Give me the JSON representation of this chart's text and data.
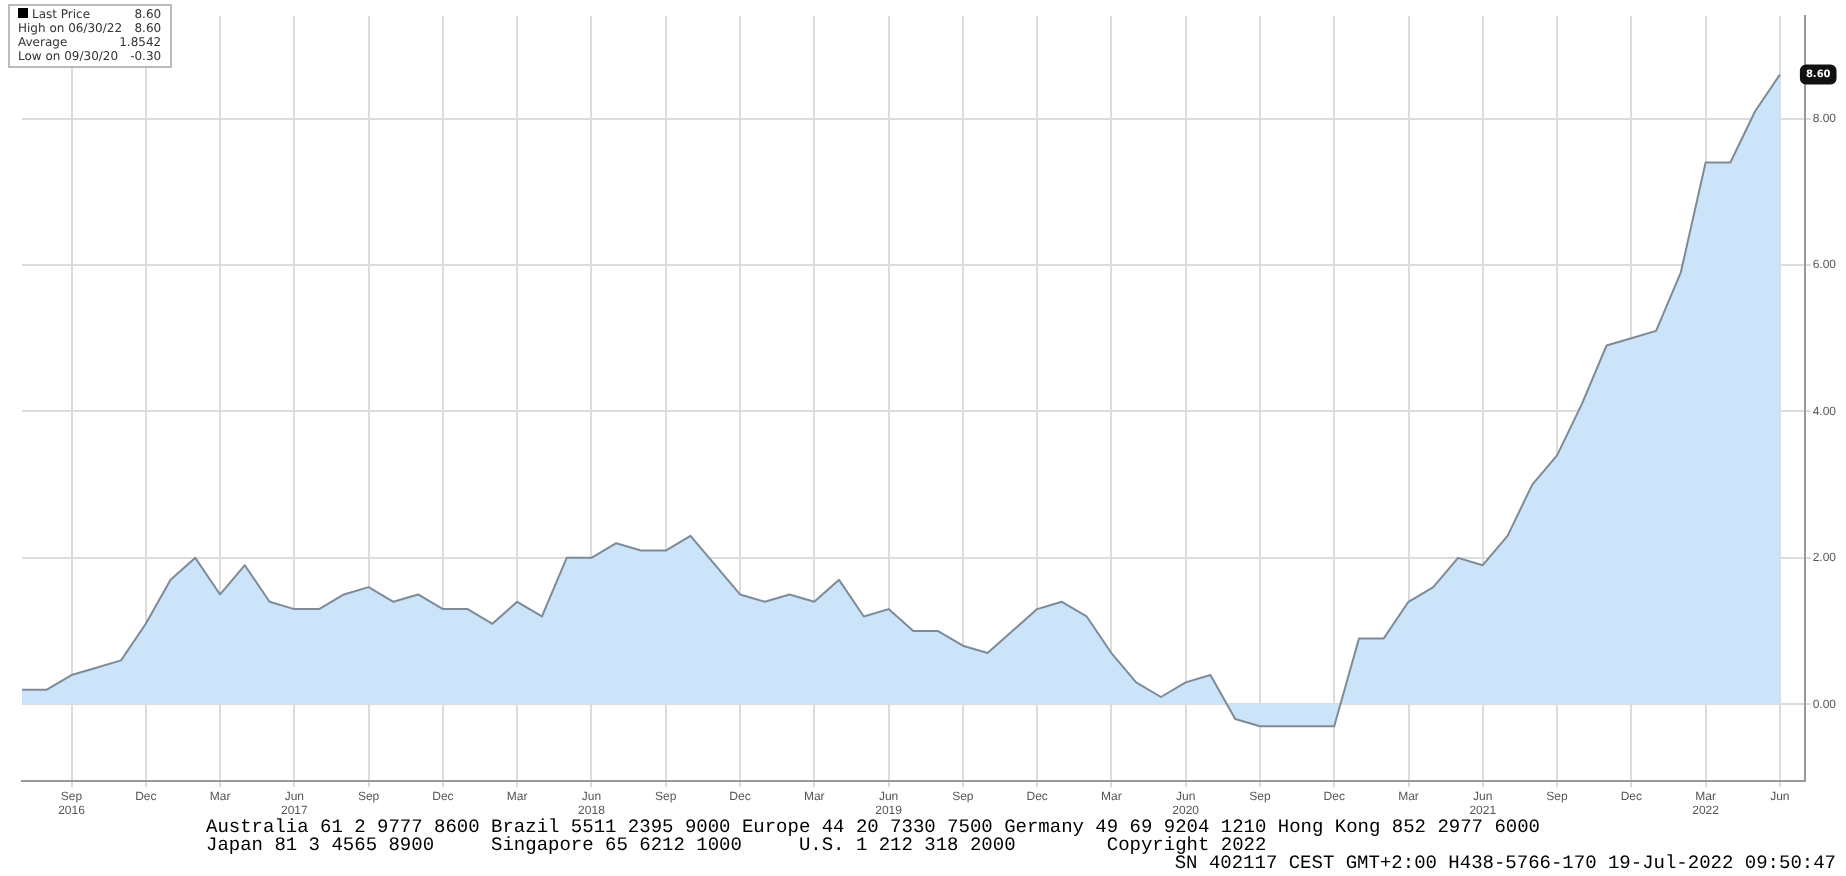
{
  "chart_data": {
    "type": "area",
    "x": [
      "2016-07",
      "2016-08",
      "2016-09",
      "2016-10",
      "2016-11",
      "2016-12",
      "2017-01",
      "2017-02",
      "2017-03",
      "2017-04",
      "2017-05",
      "2017-06",
      "2017-07",
      "2017-08",
      "2017-09",
      "2017-10",
      "2017-11",
      "2017-12",
      "2018-01",
      "2018-02",
      "2018-03",
      "2018-04",
      "2018-05",
      "2018-06",
      "2018-07",
      "2018-08",
      "2018-09",
      "2018-10",
      "2018-11",
      "2018-12",
      "2019-01",
      "2019-02",
      "2019-03",
      "2019-04",
      "2019-05",
      "2019-06",
      "2019-07",
      "2019-08",
      "2019-09",
      "2019-10",
      "2019-11",
      "2019-12",
      "2020-01",
      "2020-02",
      "2020-03",
      "2020-04",
      "2020-05",
      "2020-06",
      "2020-07",
      "2020-08",
      "2020-09",
      "2020-10",
      "2020-11",
      "2020-12",
      "2021-01",
      "2021-02",
      "2021-03",
      "2021-04",
      "2021-05",
      "2021-06",
      "2021-07",
      "2021-08",
      "2021-09",
      "2021-10",
      "2021-11",
      "2021-12",
      "2022-01",
      "2022-02",
      "2022-03",
      "2022-04",
      "2022-05",
      "2022-06"
    ],
    "series": [
      {
        "color": "#cce4f9",
        "values": [
          0.2,
          0.2,
          0.4,
          0.5,
          0.6,
          1.1,
          1.7,
          2.0,
          1.5,
          1.9,
          1.4,
          1.3,
          1.3,
          1.5,
          1.6,
          1.4,
          1.5,
          1.3,
          1.3,
          1.1,
          1.4,
          1.2,
          2.0,
          2.0,
          2.2,
          2.1,
          2.1,
          2.3,
          1.9,
          1.5,
          1.4,
          1.5,
          1.4,
          1.7,
          1.2,
          1.3,
          1.0,
          1.0,
          0.8,
          0.7,
          1.0,
          1.3,
          1.4,
          1.2,
          0.7,
          0.3,
          0.1,
          0.3,
          0.4,
          -0.2,
          -0.3,
          -0.3,
          -0.3,
          -0.3,
          0.9,
          0.9,
          1.4,
          1.6,
          2.0,
          1.9,
          2.3,
          3.0,
          3.4,
          4.1,
          4.9,
          5.0,
          5.1,
          5.9,
          7.4,
          7.4,
          8.1,
          8.6
        ]
      }
    ],
    "xlim": [
      "2016-07",
      "2022-07"
    ],
    "xticks": [
      {
        "value": "2016-09",
        "label": "Sep\n2016"
      },
      {
        "value": "2016-12",
        "label": "Dec"
      },
      {
        "value": "2017-03",
        "label": "Mar"
      },
      {
        "value": "2017-06",
        "label": "Jun\n2017"
      },
      {
        "value": "2017-09",
        "label": "Sep"
      },
      {
        "value": "2017-12",
        "label": "Dec"
      },
      {
        "value": "2018-03",
        "label": "Mar"
      },
      {
        "value": "2018-06",
        "label": "Jun\n2018"
      },
      {
        "value": "2018-09",
        "label": "Sep"
      },
      {
        "value": "2018-12",
        "label": "Dec"
      },
      {
        "value": "2019-03",
        "label": "Mar"
      },
      {
        "value": "2019-06",
        "label": "Jun\n2019"
      },
      {
        "value": "2019-09",
        "label": "Sep"
      },
      {
        "value": "2019-12",
        "label": "Dec"
      },
      {
        "value": "2020-03",
        "label": "Mar"
      },
      {
        "value": "2020-06",
        "label": "Jun\n2020"
      },
      {
        "value": "2020-09",
        "label": "Sep"
      },
      {
        "value": "2020-12",
        "label": "Dec"
      },
      {
        "value": "2021-03",
        "label": "Mar"
      },
      {
        "value": "2021-06",
        "label": "Jun\n2021"
      },
      {
        "value": "2021-09",
        "label": "Sep"
      },
      {
        "value": "2021-12",
        "label": "Dec"
      },
      {
        "value": "2022-03",
        "label": "Mar\n2022"
      },
      {
        "value": "2022-06",
        "label": "Jun"
      }
    ],
    "ylim": [
      -1.05,
      9.4
    ],
    "yticks": [
      {
        "value": 0,
        "label": "0.00"
      },
      {
        "value": 2,
        "label": "2.00"
      },
      {
        "value": 4,
        "label": "4.00"
      },
      {
        "value": 6,
        "label": "6.00"
      },
      {
        "value": 8,
        "label": "8.00"
      }
    ],
    "grid": true,
    "legend": false,
    "marker": "none",
    "line_style": "solid",
    "annotations": [
      "Last Price 8.60",
      "High on 06/30/22 8.60",
      "Average 1.8542",
      "Low on 09/30/20 -0.30",
      {
        "text": "8.60",
        "x": "2022-06",
        "y": 8.6
      },
      "Australia 61 2 9777 8600 Brazil 5511 2395 9000 Europe 44 20 7330 7500 Germany 49 69 9204 1210 Hong Kong 852 2977 6000",
      "Japan 81 3 4565 8900     Singapore 65 6212 1000     U.S. 1 212 318 2000        Copyright 2022",
      "SN 402117 CEST GMT+2:00 H438-5766-170 19-Jul-2022 09:50:47"
    ]
  }
}
